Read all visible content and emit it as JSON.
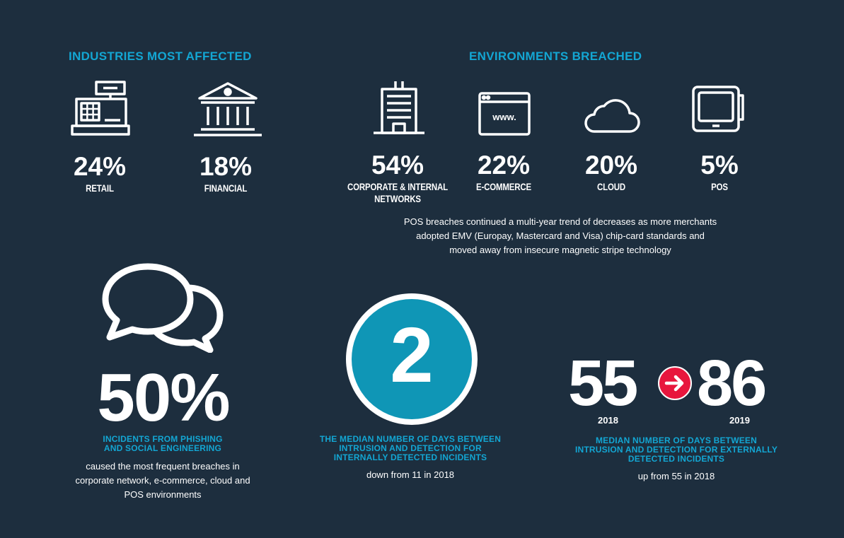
{
  "industries": {
    "title": "INDUSTRIES MOST AFFECTED",
    "items": [
      {
        "icon": "cash-register-icon",
        "value": "24%",
        "label": "RETAIL"
      },
      {
        "icon": "bank-icon",
        "value": "18%",
        "label": "FINANCIAL"
      }
    ]
  },
  "environments": {
    "title": "ENVIRONMENTS BREACHED",
    "items": [
      {
        "icon": "office-building-icon",
        "value": "54%",
        "label_line1": "CORPORATE & INTERNAL",
        "label_line2": "NETWORKS"
      },
      {
        "icon": "browser-window-icon",
        "value": "22%",
        "label_line1": "E-COMMERCE",
        "icon_text": "www."
      },
      {
        "icon": "cloud-icon",
        "value": "20%",
        "label_line1": "CLOUD"
      },
      {
        "icon": "pos-terminal-icon",
        "value": "5%",
        "label_line1": "POS"
      }
    ],
    "note_line1": "POS breaches continued a multi-year trend of decreases as more merchants",
    "note_line2": "adopted EMV (Europay, Mastercard and Visa) chip-card standards and",
    "note_line3": "moved away from insecure magnetic stripe technology"
  },
  "phishing": {
    "icon": "speech-bubbles-icon",
    "value": "50%",
    "caption_line1": "INCIDENTS FROM PHISHING",
    "caption_line2": "AND SOCIAL ENGINEERING",
    "desc_line1": "caused the most frequent breaches in",
    "desc_line2": "corporate network, e-commerce, cloud and",
    "desc_line3": "POS environments"
  },
  "internal": {
    "value": "2",
    "circle_color": "#0f96b6",
    "caption_line1": "THE MEDIAN NUMBER OF DAYS BETWEEN",
    "caption_line2": "INTRUSION AND DETECTION FOR",
    "caption_line3": "INTERNALLY DETECTED INCIDENTS",
    "desc": "down from 11 in 2018"
  },
  "external": {
    "from_value": "55",
    "from_year": "2018",
    "to_value": "86",
    "to_year": "2019",
    "arrow_icon": "arrow-right-icon",
    "arrow_color": "#e8163d",
    "caption_line1": "MEDIAN NUMBER OF DAYS BETWEEN",
    "caption_line2": "INTRUSION AND DETECTION FOR EXTERNALLY",
    "caption_line3": "DETECTED INCIDENTS",
    "desc": "up from 55 in 2018"
  }
}
